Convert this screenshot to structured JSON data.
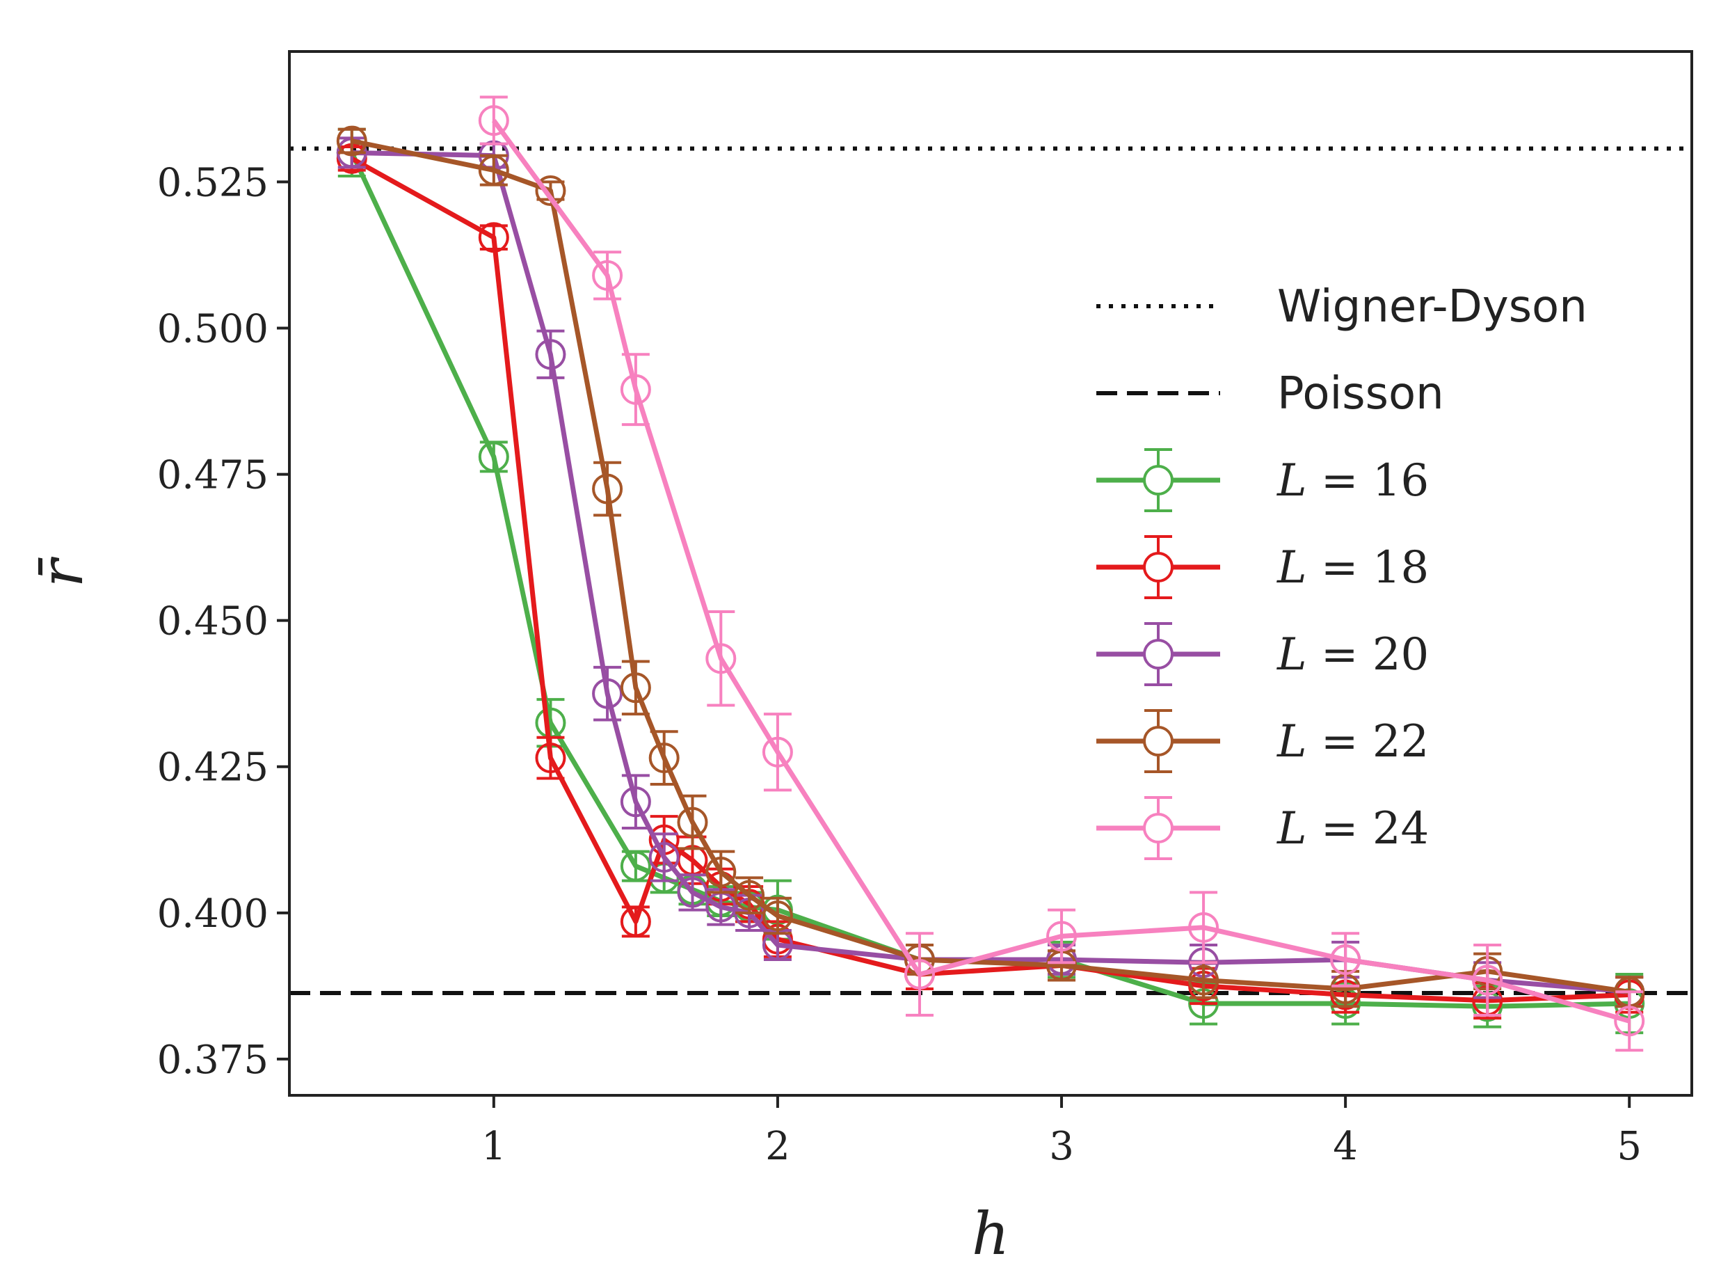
{
  "chart_data": {
    "type": "line",
    "xlabel": "h",
    "ylabel": "r̄",
    "xlim": [
      0.28,
      5.22
    ],
    "ylim": [
      0.3688,
      0.5473
    ],
    "xticks": [
      1,
      2,
      3,
      4,
      5
    ],
    "yticks": [
      0.375,
      0.4,
      0.425,
      0.45,
      0.475,
      0.5,
      0.525
    ],
    "ytick_labels": [
      "0.375",
      "0.400",
      "0.425",
      "0.450",
      "0.475",
      "0.500",
      "0.525"
    ],
    "grid": false,
    "legend_position": "center-right",
    "reference_lines": [
      {
        "name": "Wigner-Dyson",
        "y": 0.5307,
        "style": "dotted",
        "color": "#111111"
      },
      {
        "name": "Poisson",
        "y": 0.3863,
        "style": "dashed",
        "color": "#111111"
      }
    ],
    "series": [
      {
        "name": "L = 16",
        "label_var": "L",
        "label_val": "16",
        "color": "#4daf4a",
        "x": [
          0.5,
          1.0,
          1.2,
          1.5,
          1.6,
          1.7,
          1.8,
          1.9,
          2.0,
          2.5,
          3.0,
          3.5,
          4.0,
          4.5,
          5.0
        ],
        "y": [
          0.53,
          0.478,
          0.4325,
          0.408,
          0.406,
          0.404,
          0.402,
          0.401,
          0.4005,
          0.392,
          0.392,
          0.3845,
          0.3845,
          0.384,
          0.3845
        ],
        "err": [
          0.004,
          0.0025,
          0.004,
          0.0025,
          0.0025,
          0.0025,
          0.0025,
          0.0025,
          0.005,
          0.0025,
          0.003,
          0.0035,
          0.0035,
          0.0035,
          0.005
        ]
      },
      {
        "name": "L = 18",
        "label_var": "L",
        "label_val": "18",
        "color": "#e41a1c",
        "x": [
          0.5,
          1.0,
          1.2,
          1.5,
          1.6,
          1.7,
          1.8,
          1.9,
          2.0,
          2.5,
          3.0,
          3.5,
          4.0,
          4.5,
          5.0
        ],
        "y": [
          0.529,
          0.5155,
          0.4265,
          0.3985,
          0.4125,
          0.409,
          0.4045,
          0.4015,
          0.3955,
          0.3895,
          0.391,
          0.3875,
          0.386,
          0.385,
          0.386
        ],
        "err": [
          0.002,
          0.002,
          0.0035,
          0.0025,
          0.004,
          0.004,
          0.003,
          0.003,
          0.003,
          0.0025,
          0.0025,
          0.003,
          0.003,
          0.003,
          0.003
        ]
      },
      {
        "name": "L = 20",
        "label_var": "L",
        "label_val": "20",
        "color": "#984ea3",
        "x": [
          0.5,
          1.0,
          1.2,
          1.4,
          1.5,
          1.6,
          1.7,
          1.8,
          1.9,
          2.0,
          2.5,
          3.0,
          3.5,
          4.0,
          4.5,
          5.0
        ],
        "y": [
          0.53,
          0.5295,
          0.4955,
          0.4375,
          0.419,
          0.4095,
          0.4035,
          0.401,
          0.4,
          0.3945,
          0.392,
          0.392,
          0.3915,
          0.392,
          0.3885,
          0.3865
        ],
        "err": [
          0.0025,
          0.002,
          0.004,
          0.0045,
          0.0045,
          0.004,
          0.003,
          0.003,
          0.003,
          0.0025,
          0.0025,
          0.0025,
          0.003,
          0.003,
          0.003,
          0.0025
        ]
      },
      {
        "name": "L = 22",
        "label_var": "L",
        "label_val": "22",
        "color": "#a65628",
        "x": [
          0.5,
          1.0,
          1.2,
          1.4,
          1.5,
          1.6,
          1.7,
          1.8,
          1.9,
          2.0,
          2.5,
          3.0,
          3.5,
          4.0,
          4.5,
          5.0
        ],
        "y": [
          0.532,
          0.527,
          0.5235,
          0.4725,
          0.4385,
          0.4265,
          0.4155,
          0.407,
          0.403,
          0.3995,
          0.392,
          0.391,
          0.3885,
          0.387,
          0.39,
          0.3865
        ],
        "err": [
          0.002,
          0.0025,
          0.0015,
          0.0045,
          0.0045,
          0.0045,
          0.0045,
          0.0035,
          0.003,
          0.003,
          0.0025,
          0.0025,
          0.003,
          0.003,
          0.003,
          0.0025
        ]
      },
      {
        "name": "L = 24",
        "label_var": "L",
        "label_val": "24",
        "color": "#f781bf",
        "x": [
          1.0,
          1.4,
          1.5,
          1.8,
          2.0,
          2.5,
          3.0,
          3.5,
          4.0,
          4.5,
          5.0
        ],
        "y": [
          0.5355,
          0.509,
          0.4895,
          0.4435,
          0.4275,
          0.3895,
          0.396,
          0.3975,
          0.392,
          0.3885,
          0.3815
        ],
        "err": [
          0.004,
          0.004,
          0.006,
          0.008,
          0.0065,
          0.007,
          0.0045,
          0.006,
          0.0045,
          0.006,
          0.005
        ]
      }
    ]
  }
}
